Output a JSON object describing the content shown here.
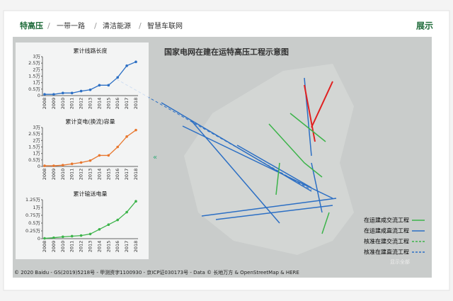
{
  "nav": {
    "tabs": [
      "特高压",
      "一带一路",
      "清洁能源",
      "智慧车联网"
    ],
    "action": "展示"
  },
  "map": {
    "title": "国家电网在建在运特高压工程示意图",
    "legend": [
      "在运建成交流工程",
      "在运建成直流工程",
      "核准在建交流工程",
      "核准在建直流工程"
    ],
    "show_all": "显示全部",
    "toggle": "«",
    "copyright": "© 2020 Baidu - GS(2019)5218号 - 甲测资字1100930 - 京ICP证030173号 - Data © 长地万方 & OpenStreetMap & HERE"
  },
  "chart_data": [
    {
      "type": "line",
      "title": "累计线路长度",
      "color": "#2c6fc4",
      "categories": [
        "2008",
        "2009",
        "2010",
        "2011",
        "2012",
        "2013",
        "2014",
        "2015",
        "2016",
        "2017",
        "2018"
      ],
      "values": [
        0.1,
        0.1,
        0.2,
        0.2,
        0.35,
        0.45,
        0.8,
        0.8,
        1.4,
        2.3,
        2.6
      ],
      "ylim": [
        0,
        3
      ],
      "yticks": [
        0,
        {
          "value": 0.5,
          "label": "0.5万"
        },
        {
          "value": 1,
          "label": "1万"
        },
        {
          "value": 1.5,
          "label": "1.5万"
        },
        {
          "value": 2,
          "label": "2万"
        },
        {
          "value": 2.5,
          "label": "2.5万"
        },
        {
          "value": 3,
          "label": "3万"
        }
      ]
    },
    {
      "type": "line",
      "title": "累计变电(换流)容量",
      "color": "#e8772e",
      "categories": [
        "2008",
        "2009",
        "2010",
        "2011",
        "2012",
        "2013",
        "2014",
        "2015",
        "2016",
        "2017",
        "2018"
      ],
      "values": [
        0.05,
        0.05,
        0.1,
        0.2,
        0.3,
        0.45,
        0.85,
        0.85,
        1.5,
        2.3,
        2.8
      ],
      "ylim": [
        0,
        3
      ],
      "yticks": [
        0,
        {
          "value": 0.5,
          "label": "0.5万"
        },
        {
          "value": 1,
          "label": "1万"
        },
        {
          "value": 1.5,
          "label": "1.5万"
        },
        {
          "value": 2,
          "label": "2万"
        },
        {
          "value": 2.5,
          "label": "2.5万"
        },
        {
          "value": 3,
          "label": "3万"
        }
      ]
    },
    {
      "type": "line",
      "title": "累计输送电量",
      "color": "#3cb44a",
      "categories": [
        "2008",
        "2009",
        "2010",
        "2011",
        "2012",
        "2013",
        "2014",
        "2015",
        "2016",
        "2017",
        "2018"
      ],
      "values": [
        0.01,
        0.03,
        0.06,
        0.08,
        0.1,
        0.15,
        0.3,
        0.45,
        0.6,
        0.85,
        1.2
      ],
      "ylim": [
        0,
        1.25
      ],
      "yticks": [
        0,
        {
          "value": 0.25,
          "label": "0.25万"
        },
        {
          "value": 0.5,
          "label": "0.5万"
        },
        {
          "value": 0.75,
          "label": "0.75万"
        },
        {
          "value": 1,
          "label": "1万"
        },
        {
          "value": 1.25,
          "label": "1.25万"
        }
      ]
    }
  ]
}
